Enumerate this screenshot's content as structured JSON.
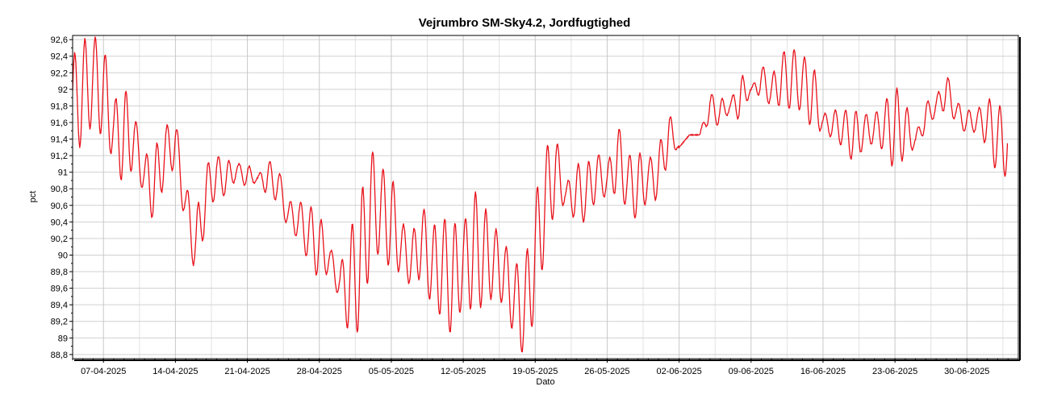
{
  "chart_data": {
    "type": "line",
    "title": "Vejrumbro SM-Sky4.2, Jordfugtighed",
    "xlabel": "Dato",
    "ylabel": "pct",
    "ylim": [
      88.75,
      92.65
    ],
    "x_range": [
      "2025-04-04",
      "2025-07-05"
    ],
    "y_ticks": [
      "88,8",
      "89",
      "89,2",
      "89,4",
      "89,6",
      "89,8",
      "90",
      "90,2",
      "90,4",
      "90,6",
      "90,8",
      "91",
      "91,2",
      "91,4",
      "91,6",
      "91,8",
      "92",
      "92,2",
      "92,4",
      "92,6"
    ],
    "x_ticks": [
      {
        "label": "07-04-2025",
        "date": "2025-04-07"
      },
      {
        "label": "14-04-2025",
        "date": "2025-04-14"
      },
      {
        "label": "21-04-2025",
        "date": "2025-04-21"
      },
      {
        "label": "28-04-2025",
        "date": "2025-04-28"
      },
      {
        "label": "05-05-2025",
        "date": "2025-05-05"
      },
      {
        "label": "12-05-2025",
        "date": "2025-05-12"
      },
      {
        "label": "19-05-2025",
        "date": "2025-05-19"
      },
      {
        "label": "26-05-2025",
        "date": "2025-05-26"
      },
      {
        "label": "02-06-2025",
        "date": "2025-06-02"
      },
      {
        "label": "09-06-2025",
        "date": "2025-06-09"
      },
      {
        "label": "16-06-2025",
        "date": "2025-06-16"
      },
      {
        "label": "23-06-2025",
        "date": "2025-06-23"
      },
      {
        "label": "30-06-2025",
        "date": "2025-06-30"
      }
    ],
    "grid": true,
    "legend": "none",
    "series": [
      {
        "color": "#e8121b",
        "x": [
          "2025-04-04",
          "2025-04-05",
          "2025-04-06",
          "2025-04-07",
          "2025-04-08",
          "2025-04-09",
          "2025-04-10",
          "2025-04-11",
          "2025-04-12",
          "2025-04-13",
          "2025-04-14",
          "2025-04-15",
          "2025-04-16",
          "2025-04-17",
          "2025-04-18",
          "2025-04-19",
          "2025-04-20",
          "2025-04-21",
          "2025-04-22",
          "2025-04-23",
          "2025-04-24",
          "2025-04-25",
          "2025-04-26",
          "2025-04-27",
          "2025-04-28",
          "2025-04-29",
          "2025-04-30",
          "2025-05-01",
          "2025-05-02",
          "2025-05-03",
          "2025-05-04",
          "2025-05-05",
          "2025-05-06",
          "2025-05-07",
          "2025-05-08",
          "2025-05-09",
          "2025-05-10",
          "2025-05-11",
          "2025-05-12",
          "2025-05-13",
          "2025-05-14",
          "2025-05-15",
          "2025-05-16",
          "2025-05-17",
          "2025-05-18",
          "2025-05-19",
          "2025-05-20",
          "2025-05-21",
          "2025-05-22",
          "2025-05-23",
          "2025-05-24",
          "2025-05-25",
          "2025-05-26",
          "2025-05-27",
          "2025-05-28",
          "2025-05-29",
          "2025-05-30",
          "2025-05-31",
          "2025-06-01",
          "2025-06-02",
          "2025-06-03",
          "2025-06-04",
          "2025-06-05",
          "2025-06-06",
          "2025-06-07",
          "2025-06-08",
          "2025-06-09",
          "2025-06-10",
          "2025-06-11",
          "2025-06-12",
          "2025-06-13",
          "2025-06-14",
          "2025-06-15",
          "2025-06-16",
          "2025-06-17",
          "2025-06-18",
          "2025-06-19",
          "2025-06-20",
          "2025-06-21",
          "2025-06-22",
          "2025-06-23",
          "2025-06-24",
          "2025-06-25",
          "2025-06-26",
          "2025-06-27",
          "2025-06-28",
          "2025-06-29",
          "2025-06-30",
          "2025-07-01",
          "2025-07-02",
          "2025-07-03"
        ],
        "daily_max": [
          92.4,
          92.6,
          92.65,
          92.55,
          91.85,
          92.05,
          91.7,
          91.2,
          91.3,
          91.55,
          91.65,
          90.85,
          90.5,
          91.1,
          91.2,
          91.15,
          91.1,
          91.1,
          90.95,
          91.15,
          91.05,
          90.65,
          90.65,
          90.6,
          90.5,
          90.1,
          89.85,
          90.3,
          90.7,
          91.3,
          91.05,
          91.0,
          90.4,
          90.25,
          90.6,
          90.35,
          90.45,
          90.4,
          90.35,
          90.8,
          90.6,
          90.35,
          90.15,
          89.9,
          89.9,
          90.7,
          91.3,
          91.45,
          90.85,
          91.1,
          91.1,
          91.25,
          91.05,
          91.6,
          91.2,
          91.25,
          91.15,
          91.3,
          91.75,
          91.3,
          91.45,
          91.45,
          91.95,
          91.9,
          91.85,
          92.2,
          92.0,
          92.3,
          92.15,
          92.45,
          92.5,
          92.4,
          92.35,
          91.7,
          91.75,
          91.75,
          91.75,
          91.7,
          91.7,
          91.85,
          92.05,
          91.85,
          91.45,
          91.85,
          91.9,
          92.2,
          91.85,
          91.75,
          91.75,
          91.9,
          91.8
        ],
        "daily_min": [
          91.2,
          91.35,
          91.6,
          91.4,
          91.15,
          90.8,
          91.1,
          90.7,
          90.35,
          90.95,
          91.05,
          90.35,
          89.7,
          90.4,
          90.75,
          90.7,
          90.95,
          90.8,
          90.9,
          90.7,
          90.65,
          90.3,
          90.2,
          89.9,
          89.7,
          89.8,
          89.45,
          88.98,
          89.1,
          89.9,
          90.05,
          89.8,
          89.8,
          89.6,
          89.75,
          89.35,
          89.25,
          88.98,
          89.45,
          89.3,
          89.4,
          89.5,
          89.4,
          89.0,
          88.75,
          89.3,
          90.05,
          90.6,
          90.6,
          90.4,
          90.4,
          90.7,
          90.7,
          90.75,
          90.55,
          90.4,
          90.7,
          90.65,
          91.2,
          91.3,
          91.45,
          91.45,
          91.6,
          91.55,
          91.75,
          91.6,
          92.0,
          91.9,
          91.8,
          91.8,
          91.75,
          91.75,
          91.5,
          91.5,
          91.4,
          91.3,
          91.1,
          91.3,
          91.35,
          91.25,
          91.0,
          91.2,
          91.3,
          91.5,
          91.7,
          91.75,
          91.6,
          91.45,
          91.5,
          91.3,
          90.95
        ]
      }
    ]
  }
}
